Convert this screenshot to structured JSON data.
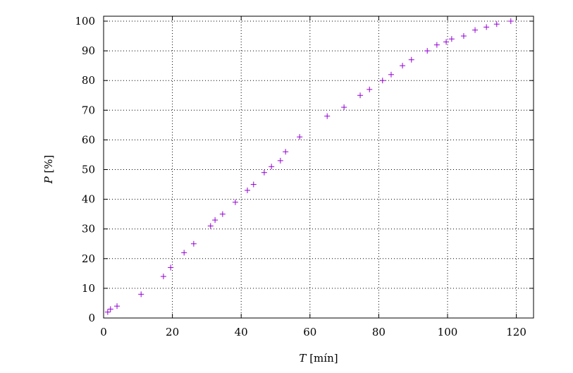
{
  "chart_data": {
    "type": "scatter",
    "title": "",
    "xlabel_var": "T",
    "xlabel_unit": "[mín]",
    "ylabel_var": "P",
    "ylabel_unit": "[%]",
    "xlim": [
      0,
      125
    ],
    "ylim": [
      0,
      100
    ],
    "xticks": [
      0,
      20,
      40,
      60,
      80,
      100,
      120
    ],
    "yticks": [
      0,
      10,
      20,
      30,
      40,
      50,
      60,
      70,
      80,
      90,
      100
    ],
    "grid": true,
    "marker": "plus",
    "color": "#9400d3",
    "points": [
      [
        1.2,
        2
      ],
      [
        2.0,
        3
      ],
      [
        3.9,
        4
      ],
      [
        10.9,
        8
      ],
      [
        17.4,
        14
      ],
      [
        19.5,
        17
      ],
      [
        23.4,
        22
      ],
      [
        26.2,
        25
      ],
      [
        31.1,
        31
      ],
      [
        32.4,
        33
      ],
      [
        34.6,
        35
      ],
      [
        38.3,
        39
      ],
      [
        41.8,
        43
      ],
      [
        43.6,
        45
      ],
      [
        46.7,
        49
      ],
      [
        48.8,
        51
      ],
      [
        51.4,
        53
      ],
      [
        52.9,
        56
      ],
      [
        57.0,
        61
      ],
      [
        65.0,
        68
      ],
      [
        69.9,
        71
      ],
      [
        74.6,
        75
      ],
      [
        77.3,
        77
      ],
      [
        81.1,
        80
      ],
      [
        83.6,
        82
      ],
      [
        86.9,
        85
      ],
      [
        89.5,
        87
      ],
      [
        94.1,
        90
      ],
      [
        96.9,
        92
      ],
      [
        99.6,
        93
      ],
      [
        101.2,
        94
      ],
      [
        104.7,
        95
      ],
      [
        108.0,
        97
      ],
      [
        111.3,
        98
      ],
      [
        114.3,
        99
      ],
      [
        118.4,
        100
      ]
    ]
  }
}
